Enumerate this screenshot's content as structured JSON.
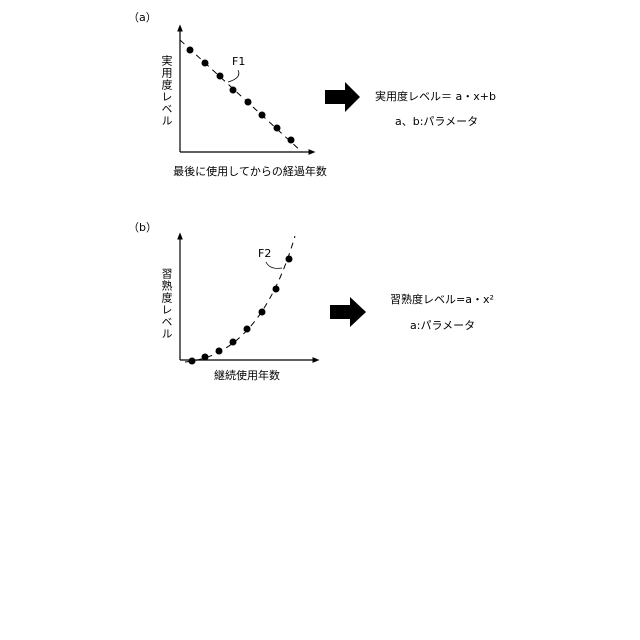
{
  "panel_a": {
    "label": "（a）",
    "y_axis_label": "実用度レベル",
    "curve_label": "F1",
    "x_axis_label": "最後に使用してからの経過年数",
    "formula": "実用度レベル＝ a・x+b",
    "parameters": "a、b:パラメータ"
  },
  "panel_b": {
    "label": "（b）",
    "y_axis_label": "習熟度レベル",
    "curve_label": "F2",
    "x_axis_label": "継続使用年数",
    "formula": "習熟度レベル=a・x²",
    "parameters": "a:パラメータ"
  }
}
